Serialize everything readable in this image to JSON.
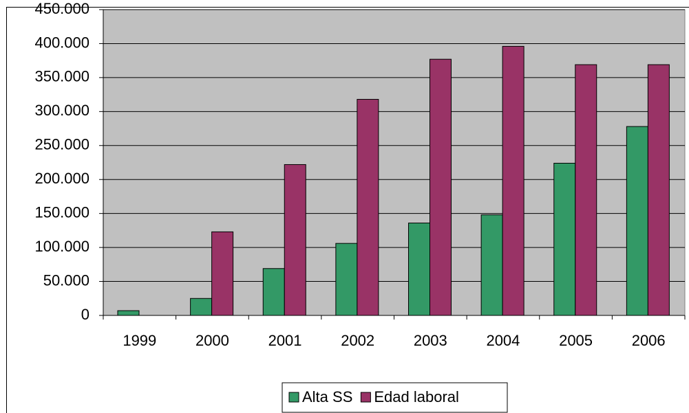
{
  "chart_data": {
    "type": "bar",
    "categories": [
      "1999",
      "2000",
      "2001",
      "2002",
      "2003",
      "2004",
      "2005",
      "2006"
    ],
    "series": [
      {
        "name": "Alta SS",
        "color": "#339966",
        "values": [
          7000,
          25000,
          69000,
          106000,
          136000,
          148000,
          224000,
          278000
        ]
      },
      {
        "name": "Edad laboral",
        "color": "#993366",
        "values": [
          null,
          123000,
          222000,
          318000,
          377000,
          396000,
          369000,
          369000
        ]
      }
    ],
    "ylim": [
      0,
      450000
    ],
    "yticks": [
      0,
      {
        "value": 50000,
        "label": "50.000"
      },
      {
        "value": 100000,
        "label": "100.000"
      },
      {
        "value": 150000,
        "label": "150.000"
      },
      {
        "value": 200000,
        "label": "200.000"
      },
      {
        "value": 250000,
        "label": "250.000"
      },
      {
        "value": 300000,
        "label": "300.000"
      },
      {
        "value": 350000,
        "label": "350.000"
      },
      {
        "value": 400000,
        "label": "400.000"
      },
      {
        "value": 450000,
        "label": "450.000"
      }
    ],
    "grid": true,
    "legend": "bottom"
  }
}
